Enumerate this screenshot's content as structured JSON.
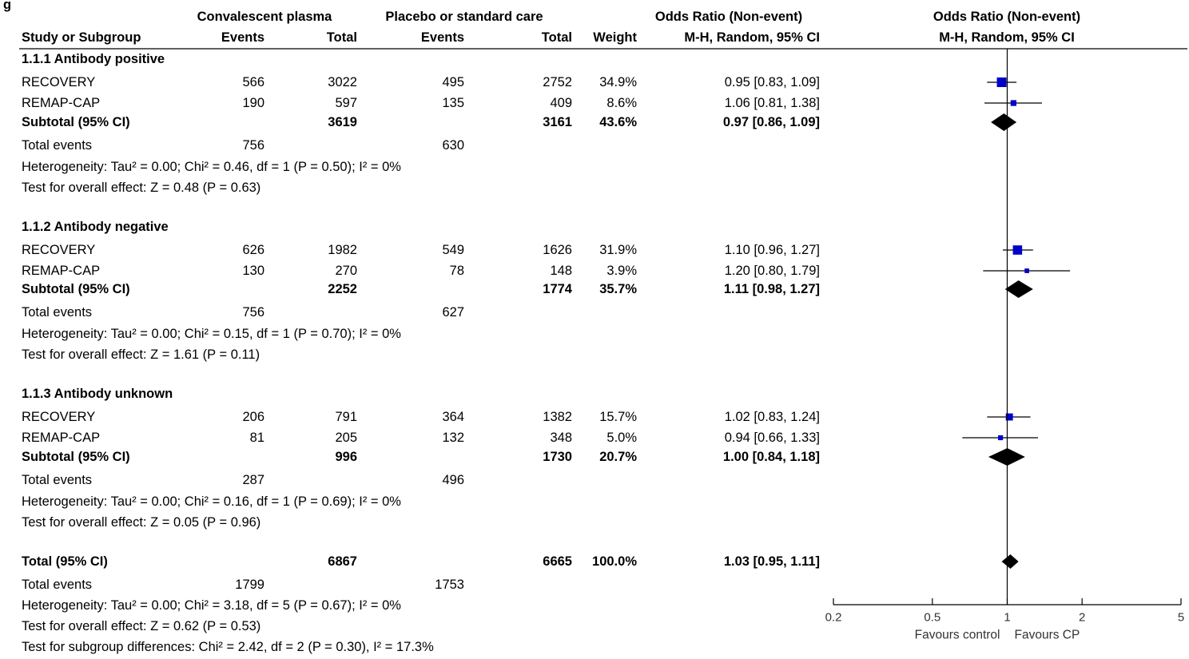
{
  "corner_label": "g",
  "header": {
    "group1": "Convalescent plasma",
    "group2": "Placebo or standard care",
    "or_title": "Odds Ratio (Non-event)",
    "or_method": "M-H, Random, 95% CI",
    "plot_title": "Odds Ratio (Non-event)",
    "plot_method": "M-H, Random, 95% CI",
    "col_study": "Study or Subgroup",
    "col_events1": "Events",
    "col_total1": "Total",
    "col_events2": "Events",
    "col_total2": "Total",
    "col_weight": "Weight"
  },
  "subgroups": [
    {
      "title": "1.1.1 Antibody positive",
      "studies": [
        {
          "name": "RECOVERY",
          "e1": "566",
          "t1": "3022",
          "e2": "495",
          "t2": "2752",
          "weight": "34.9%",
          "ci": "0.95 [0.83, 1.09]",
          "or": 0.95,
          "lo": 0.83,
          "hi": 1.09,
          "w": 34.9
        },
        {
          "name": "REMAP-CAP",
          "e1": "190",
          "t1": "597",
          "e2": "135",
          "t2": "409",
          "weight": "8.6%",
          "ci": "1.06 [0.81, 1.38]",
          "or": 1.06,
          "lo": 0.81,
          "hi": 1.38,
          "w": 8.6
        }
      ],
      "subtotal": {
        "label": "Subtotal (95% CI)",
        "t1": "3619",
        "t2": "3161",
        "weight": "43.6%",
        "ci": "0.97 [0.86, 1.09]",
        "or": 0.97,
        "lo": 0.86,
        "hi": 1.09
      },
      "total_events": {
        "label": "Total events",
        "e1": "756",
        "e2": "630"
      },
      "heterogeneity": "Heterogeneity: Tau² = 0.00; Chi² = 0.46, df = 1 (P = 0.50); I² = 0%",
      "overall": "Test for overall effect: Z = 0.48 (P = 0.63)"
    },
    {
      "title": "1.1.2 Antibody negative",
      "studies": [
        {
          "name": "RECOVERY",
          "e1": "626",
          "t1": "1982",
          "e2": "549",
          "t2": "1626",
          "weight": "31.9%",
          "ci": "1.10 [0.96, 1.27]",
          "or": 1.1,
          "lo": 0.96,
          "hi": 1.27,
          "w": 31.9
        },
        {
          "name": "REMAP-CAP",
          "e1": "130",
          "t1": "270",
          "e2": "78",
          "t2": "148",
          "weight": "3.9%",
          "ci": "1.20 [0.80, 1.79]",
          "or": 1.2,
          "lo": 0.8,
          "hi": 1.79,
          "w": 3.9
        }
      ],
      "subtotal": {
        "label": "Subtotal (95% CI)",
        "t1": "2252",
        "t2": "1774",
        "weight": "35.7%",
        "ci": "1.11 [0.98, 1.27]",
        "or": 1.11,
        "lo": 0.98,
        "hi": 1.27
      },
      "total_events": {
        "label": "Total events",
        "e1": "756",
        "e2": "627"
      },
      "heterogeneity": "Heterogeneity: Tau² = 0.00; Chi² = 0.15, df = 1 (P = 0.70); I² = 0%",
      "overall": "Test for overall effect: Z = 1.61 (P = 0.11)"
    },
    {
      "title": "1.1.3 Antibody unknown",
      "studies": [
        {
          "name": "RECOVERY",
          "e1": "206",
          "t1": "791",
          "e2": "364",
          "t2": "1382",
          "weight": "15.7%",
          "ci": "1.02 [0.83, 1.24]",
          "or": 1.02,
          "lo": 0.83,
          "hi": 1.24,
          "w": 15.7
        },
        {
          "name": "REMAP-CAP",
          "e1": "81",
          "t1": "205",
          "e2": "132",
          "t2": "348",
          "weight": "5.0%",
          "ci": "0.94 [0.66, 1.33]",
          "or": 0.94,
          "lo": 0.66,
          "hi": 1.33,
          "w": 5.0
        }
      ],
      "subtotal": {
        "label": "Subtotal (95% CI)",
        "t1": "996",
        "t2": "1730",
        "weight": "20.7%",
        "ci": "1.00 [0.84, 1.18]",
        "or": 1.0,
        "lo": 0.84,
        "hi": 1.18
      },
      "total_events": {
        "label": "Total events",
        "e1": "287",
        "e2": "496"
      },
      "heterogeneity": "Heterogeneity: Tau² = 0.00; Chi² = 0.16, df = 1 (P = 0.69); I² = 0%",
      "overall": "Test for overall effect: Z = 0.05 (P = 0.96)"
    }
  ],
  "total": {
    "label": "Total (95% CI)",
    "t1": "6867",
    "t2": "6665",
    "weight": "100.0%",
    "ci": "1.03 [0.95, 1.11]",
    "or": 1.03,
    "lo": 0.95,
    "hi": 1.11
  },
  "total_events": {
    "label": "Total events",
    "e1": "1799",
    "e2": "1753"
  },
  "total_heterogeneity": "Heterogeneity: Tau² = 0.00; Chi² = 3.18, df = 5 (P = 0.67); I² = 0%",
  "total_overall": "Test for overall effect: Z = 0.62 (P = 0.53)",
  "subgroup_diff": "Test for subgroup differences: Chi² = 2.42, df = 2 (P = 0.30), I² = 17.3%",
  "favours_left": "Favours control",
  "favours_right": "Favours CP",
  "colors": {
    "study_marker": "#0000c8",
    "summary_diamond": "#000000",
    "text": "#000000"
  },
  "chart_data": {
    "type": "forest",
    "scale": "log",
    "xlim": [
      0.2,
      5
    ],
    "xticks": [
      "0.2",
      "0.5",
      "1",
      "2",
      "5"
    ],
    "xtick_values": [
      0.2,
      0.5,
      1,
      2,
      5
    ],
    "null_line": 1,
    "grid": false
  }
}
